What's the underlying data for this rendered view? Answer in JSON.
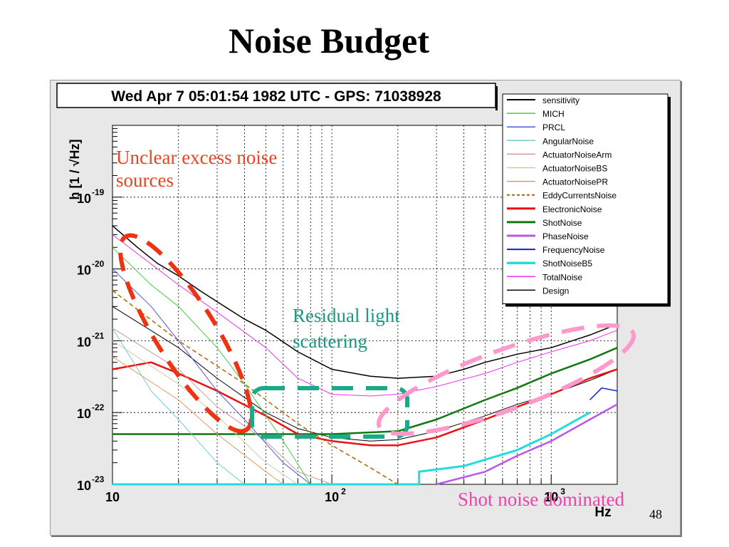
{
  "slide": {
    "title": "Noise Budget",
    "page_number": "48"
  },
  "chart_data": {
    "type": "line",
    "header": "Wed Apr  7 05:01:54 1982 UTC - GPS: 71038928",
    "xlabel": "Hz",
    "ylabel": "h [1 / √Hz]",
    "xscale": "log",
    "yscale": "log",
    "xlim": [
      10,
      2000
    ],
    "ylim": [
      1e-23,
      1e-18
    ],
    "grid": true,
    "legend_position": "top-right",
    "x_ticks": [
      {
        "value": 10,
        "label": "10"
      },
      {
        "value": 100,
        "label": "10",
        "exp": "2"
      },
      {
        "value": 1000,
        "label": "10",
        "exp": "3"
      }
    ],
    "y_ticks": [
      {
        "value": 1e-19,
        "label": "10",
        "exp": "-19"
      },
      {
        "value": 1e-20,
        "label": "10",
        "exp": "-20"
      },
      {
        "value": 1e-21,
        "label": "10",
        "exp": "-21"
      },
      {
        "value": 1e-22,
        "label": "10",
        "exp": "-22"
      },
      {
        "value": 1e-23,
        "label": "10",
        "exp": "-23"
      }
    ],
    "series": [
      {
        "name": "sensitivity",
        "color": "#000000",
        "style": "solid",
        "width": 1.5,
        "x": [
          10,
          13,
          16,
          20,
          25,
          30,
          40,
          50,
          70,
          100,
          150,
          200,
          300,
          400,
          500,
          700,
          1000,
          1500,
          2000
        ],
        "y": [
          4e-20,
          2e-20,
          1.2e-20,
          8e-21,
          5e-21,
          3.5e-21,
          2e-21,
          1.4e-21,
          7e-22,
          4e-22,
          3.2e-22,
          3e-22,
          3.2e-22,
          4e-22,
          5e-22,
          6.5e-22,
          8e-22,
          1.2e-21,
          1.7e-21
        ]
      },
      {
        "name": "MICH",
        "color": "#44cc44",
        "style": "solid",
        "width": 1,
        "x": [
          10,
          15,
          20,
          30,
          40,
          60,
          80
        ],
        "y": [
          2e-20,
          6e-21,
          3e-21,
          8e-22,
          2.5e-22,
          4e-23,
          1e-23
        ]
      },
      {
        "name": "PRCL",
        "color": "#5555dd",
        "style": "solid",
        "width": 1,
        "x": [
          10,
          15,
          20,
          30,
          40,
          60,
          80
        ],
        "y": [
          1e-20,
          3e-21,
          1e-21,
          2e-22,
          8e-23,
          2e-23,
          1e-23
        ]
      },
      {
        "name": "AngularNoise",
        "color": "#77cccc",
        "style": "solid",
        "width": 1,
        "x": [
          10,
          15,
          20,
          30,
          40
        ],
        "y": [
          1.5e-21,
          2e-22,
          8e-23,
          2e-23,
          1e-23
        ]
      },
      {
        "name": "ActuatorNoiseArm",
        "color": "#cc9999",
        "style": "solid",
        "width": 1,
        "x": [
          10,
          20,
          30,
          50,
          70,
          100
        ],
        "y": [
          1.5e-21,
          4e-22,
          1.2e-22,
          4e-23,
          1.5e-23,
          1e-23
        ]
      },
      {
        "name": "ActuatorNoiseBS",
        "color": "#ccccaa",
        "style": "solid",
        "width": 1,
        "x": [
          10,
          20,
          30,
          50,
          70
        ],
        "y": [
          1e-21,
          2.5e-22,
          9e-23,
          2e-23,
          1e-23
        ]
      },
      {
        "name": "ActuatorNoisePR",
        "color": "#dd9966",
        "style": "solid",
        "width": 1,
        "x": [
          10,
          20,
          30,
          50,
          60
        ],
        "y": [
          6e-22,
          1.5e-22,
          5e-23,
          1.5e-23,
          1e-23
        ]
      },
      {
        "name": "EddyCurrentsNoise",
        "color": "#aa6600",
        "style": "dashed",
        "width": 1.5,
        "x": [
          10,
          20,
          40,
          70,
          100,
          150,
          200
        ],
        "y": [
          5e-21,
          1e-21,
          2.5e-22,
          7e-23,
          3.5e-23,
          1.7e-23,
          1e-23
        ]
      },
      {
        "name": "ElectronicNoise",
        "color": "#ee1111",
        "style": "solid",
        "width": 2.5,
        "x": [
          10,
          15,
          20,
          30,
          50,
          70,
          100,
          150,
          200,
          300,
          500,
          700,
          1000,
          1500,
          2000
        ],
        "y": [
          4e-22,
          5e-22,
          3.5e-22,
          2e-22,
          9e-23,
          5e-23,
          4e-23,
          3.5e-23,
          3.5e-23,
          4.5e-23,
          8e-23,
          1.2e-22,
          1.8e-22,
          3e-22,
          4e-22
        ]
      },
      {
        "name": "ShotNoise",
        "color": "#117711",
        "style": "solid",
        "width": 2.5,
        "x": [
          10,
          100,
          200,
          300,
          500,
          700,
          1000,
          1500,
          2000
        ],
        "y": [
          5e-23,
          5e-23,
          5.5e-23,
          8e-23,
          1.5e-22,
          2.2e-22,
          3.5e-22,
          5.5e-22,
          8e-22
        ]
      },
      {
        "name": "PhaseNoise",
        "color": "#bb55ee",
        "style": "solid",
        "width": 2.5,
        "x": [
          300,
          500,
          700,
          1000,
          1500,
          2000
        ],
        "y": [
          1e-23,
          1.5e-23,
          2.5e-23,
          4e-23,
          8e-23,
          1.3e-22
        ]
      },
      {
        "name": "FrequencyNoise",
        "color": "#1122cc",
        "style": "solid",
        "width": 1.5,
        "x": [
          1500,
          1700,
          2000
        ],
        "y": [
          1.5e-22,
          2.2e-22,
          2e-22
        ]
      },
      {
        "name": "ShotNoiseB5",
        "color": "#22dddd",
        "style": "solid",
        "width": 3,
        "x": [
          10,
          250,
          250,
          400,
          700,
          1000,
          1500
        ],
        "y": [
          1e-23,
          1e-23,
          1.5e-23,
          1.8e-23,
          3e-23,
          5e-23,
          1e-22
        ]
      },
      {
        "name": "TotalNoise",
        "color": "#ee33ee",
        "style": "solid",
        "width": 1,
        "x": [
          10,
          20,
          30,
          50,
          70,
          100,
          150,
          200,
          300,
          500,
          700,
          1000,
          1500,
          2000
        ],
        "y": [
          3e-20,
          6e-21,
          2.5e-21,
          8e-22,
          3e-22,
          1.8e-22,
          1.7e-22,
          1.8e-22,
          2.3e-22,
          3.5e-22,
          5e-22,
          7e-22,
          1e-21,
          1.4e-21
        ]
      },
      {
        "name": "Design",
        "color": "#000000",
        "style": "solid",
        "width": 1,
        "x": [
          10,
          20,
          30,
          50,
          70,
          100,
          150,
          200,
          300,
          500,
          700,
          1000,
          1500,
          2000
        ],
        "y": [
          3e-21,
          8e-22,
          3e-22,
          1e-22,
          6e-23,
          4.5e-23,
          4e-23,
          4.2e-23,
          5.5e-23,
          9e-23,
          1.3e-22,
          1.8e-22,
          2.8e-22,
          4e-22
        ]
      }
    ],
    "annotations": [
      {
        "text": "Unclear excess noise sources",
        "lines": [
          "Unclear excess noise",
          "sources"
        ],
        "color": "#e84420"
      },
      {
        "text": "Residual light scattering",
        "lines": [
          "Residual light",
          "scattering"
        ],
        "color": "#1a9980"
      },
      {
        "text": "Shot noise dominated",
        "lines": [
          "Shot noise dominated"
        ],
        "color": "#ee44aa"
      }
    ]
  }
}
